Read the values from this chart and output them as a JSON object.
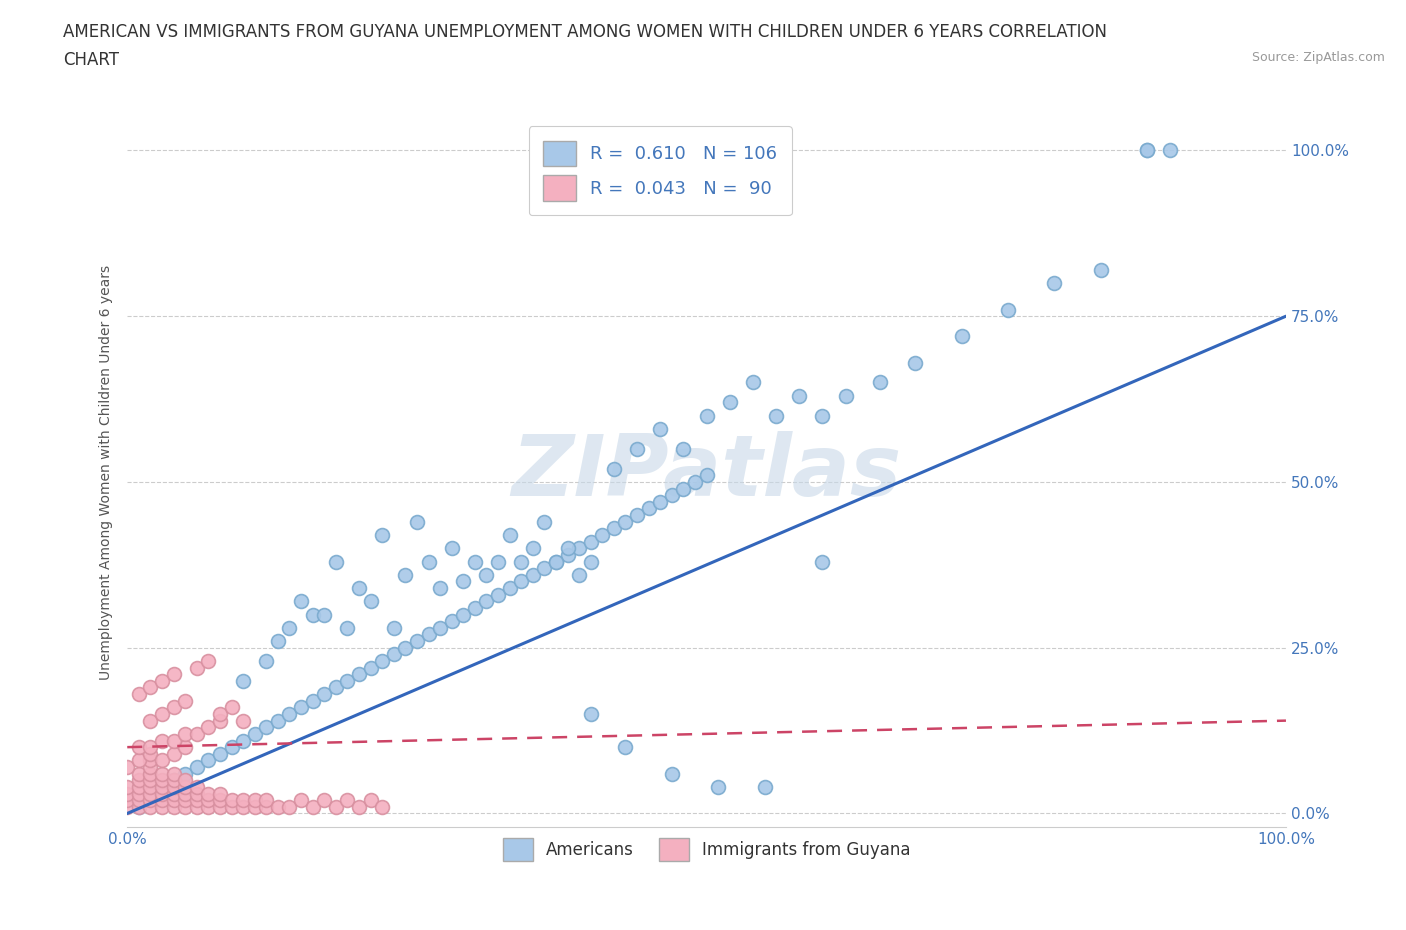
{
  "title_line1": "AMERICAN VS IMMIGRANTS FROM GUYANA UNEMPLOYMENT AMONG WOMEN WITH CHILDREN UNDER 6 YEARS CORRELATION",
  "title_line2": "CHART",
  "source": "Source: ZipAtlas.com",
  "ylabel": "Unemployment Among Women with Children Under 6 years",
  "xmin": 0.0,
  "xmax": 1.0,
  "ymin": -0.02,
  "ymax": 1.05,
  "ytick_labels": [
    "0.0%",
    "25.0%",
    "50.0%",
    "75.0%",
    "100.0%"
  ],
  "ytick_vals": [
    0.0,
    0.25,
    0.5,
    0.75,
    1.0
  ],
  "r_american": 0.61,
  "n_american": 106,
  "r_guyana": 0.043,
  "n_guyana": 90,
  "american_color": "#a8c8e8",
  "american_edge_color": "#7aaace",
  "american_line_color": "#3366bb",
  "guyana_color": "#f4b0c0",
  "guyana_edge_color": "#d890a0",
  "guyana_line_color": "#cc4466",
  "background_color": "#ffffff",
  "grid_color": "#cccccc",
  "watermark_text": "ZIPatlas",
  "watermark_color": "#c8d8e8",
  "title_fontsize": 12,
  "axis_label_fontsize": 10,
  "tick_fontsize": 11,
  "legend_fontsize": 13,
  "am_line_intercept": 0.0,
  "am_line_slope": 0.75,
  "gu_line_intercept": 0.1,
  "gu_line_slope": 0.04,
  "american_scatter_x": [
    0.01,
    0.02,
    0.03,
    0.04,
    0.05,
    0.06,
    0.07,
    0.08,
    0.09,
    0.1,
    0.11,
    0.12,
    0.13,
    0.14,
    0.15,
    0.16,
    0.17,
    0.18,
    0.19,
    0.2,
    0.21,
    0.22,
    0.23,
    0.24,
    0.25,
    0.26,
    0.27,
    0.28,
    0.29,
    0.3,
    0.31,
    0.32,
    0.33,
    0.34,
    0.35,
    0.36,
    0.37,
    0.38,
    0.39,
    0.4,
    0.41,
    0.42,
    0.43,
    0.44,
    0.45,
    0.46,
    0.47,
    0.48,
    0.49,
    0.5,
    0.15,
    0.18,
    0.22,
    0.25,
    0.28,
    0.3,
    0.33,
    0.36,
    0.38,
    0.4,
    0.12,
    0.14,
    0.16,
    0.2,
    0.24,
    0.26,
    0.29,
    0.32,
    0.35,
    0.37,
    0.1,
    0.13,
    0.17,
    0.19,
    0.21,
    0.23,
    0.27,
    0.31,
    0.34,
    0.39,
    0.42,
    0.44,
    0.46,
    0.48,
    0.5,
    0.52,
    0.54,
    0.56,
    0.58,
    0.6,
    0.62,
    0.65,
    0.68,
    0.72,
    0.76,
    0.8,
    0.84,
    0.88,
    0.88,
    0.9,
    0.4,
    0.43,
    0.47,
    0.51,
    0.55,
    0.6
  ],
  "american_scatter_y": [
    0.01,
    0.03,
    0.04,
    0.05,
    0.06,
    0.07,
    0.08,
    0.09,
    0.1,
    0.11,
    0.12,
    0.13,
    0.14,
    0.15,
    0.16,
    0.17,
    0.18,
    0.19,
    0.2,
    0.21,
    0.22,
    0.23,
    0.24,
    0.25,
    0.26,
    0.27,
    0.28,
    0.29,
    0.3,
    0.31,
    0.32,
    0.33,
    0.34,
    0.35,
    0.36,
    0.37,
    0.38,
    0.39,
    0.4,
    0.41,
    0.42,
    0.43,
    0.44,
    0.45,
    0.46,
    0.47,
    0.48,
    0.49,
    0.5,
    0.51,
    0.32,
    0.38,
    0.42,
    0.44,
    0.4,
    0.38,
    0.42,
    0.44,
    0.4,
    0.38,
    0.23,
    0.28,
    0.3,
    0.34,
    0.36,
    0.38,
    0.35,
    0.38,
    0.4,
    0.38,
    0.2,
    0.26,
    0.3,
    0.28,
    0.32,
    0.28,
    0.34,
    0.36,
    0.38,
    0.36,
    0.52,
    0.55,
    0.58,
    0.55,
    0.6,
    0.62,
    0.65,
    0.6,
    0.63,
    0.6,
    0.63,
    0.65,
    0.68,
    0.72,
    0.76,
    0.8,
    0.82,
    1.0,
    1.0,
    1.0,
    0.15,
    0.1,
    0.06,
    0.04,
    0.04,
    0.38
  ],
  "guyana_scatter_x": [
    0.0,
    0.0,
    0.0,
    0.0,
    0.01,
    0.01,
    0.01,
    0.01,
    0.01,
    0.01,
    0.02,
    0.02,
    0.02,
    0.02,
    0.02,
    0.02,
    0.02,
    0.02,
    0.03,
    0.03,
    0.03,
    0.03,
    0.03,
    0.03,
    0.04,
    0.04,
    0.04,
    0.04,
    0.04,
    0.04,
    0.05,
    0.05,
    0.05,
    0.05,
    0.05,
    0.06,
    0.06,
    0.06,
    0.06,
    0.07,
    0.07,
    0.07,
    0.08,
    0.08,
    0.08,
    0.09,
    0.09,
    0.1,
    0.1,
    0.11,
    0.11,
    0.12,
    0.12,
    0.13,
    0.14,
    0.15,
    0.16,
    0.17,
    0.18,
    0.19,
    0.2,
    0.21,
    0.22,
    0.0,
    0.01,
    0.02,
    0.03,
    0.04,
    0.05,
    0.01,
    0.02,
    0.03,
    0.04,
    0.05,
    0.06,
    0.07,
    0.08,
    0.02,
    0.03,
    0.04,
    0.05,
    0.01,
    0.02,
    0.03,
    0.04,
    0.06,
    0.07,
    0.08,
    0.09,
    0.1
  ],
  "guyana_scatter_y": [
    0.01,
    0.02,
    0.03,
    0.04,
    0.01,
    0.02,
    0.03,
    0.04,
    0.05,
    0.06,
    0.01,
    0.02,
    0.03,
    0.04,
    0.05,
    0.06,
    0.07,
    0.08,
    0.01,
    0.02,
    0.03,
    0.04,
    0.05,
    0.06,
    0.01,
    0.02,
    0.03,
    0.04,
    0.05,
    0.06,
    0.01,
    0.02,
    0.03,
    0.04,
    0.05,
    0.01,
    0.02,
    0.03,
    0.04,
    0.01,
    0.02,
    0.03,
    0.01,
    0.02,
    0.03,
    0.01,
    0.02,
    0.01,
    0.02,
    0.01,
    0.02,
    0.01,
    0.02,
    0.01,
    0.01,
    0.02,
    0.01,
    0.02,
    0.01,
    0.02,
    0.01,
    0.02,
    0.01,
    0.07,
    0.08,
    0.09,
    0.08,
    0.09,
    0.1,
    0.1,
    0.1,
    0.11,
    0.11,
    0.12,
    0.12,
    0.13,
    0.14,
    0.14,
    0.15,
    0.16,
    0.17,
    0.18,
    0.19,
    0.2,
    0.21,
    0.22,
    0.23,
    0.15,
    0.16,
    0.14
  ]
}
